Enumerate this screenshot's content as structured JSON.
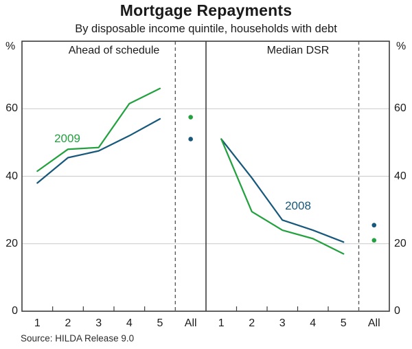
{
  "header": {
    "title": "Mortgage Repayments",
    "subtitle": "By disposable income quintile, households with debt"
  },
  "axes": {
    "unit_label": "%",
    "y_ticks": [
      0,
      20,
      40,
      60
    ],
    "y_max": 80,
    "x_categories": [
      "1",
      "2",
      "3",
      "4",
      "5",
      "All"
    ]
  },
  "source": "Source: HILDA Release 9.0",
  "colors": {
    "green": "#23a13e",
    "blue": "#17587b",
    "gridline": "#c9c9c9",
    "frame": "#3c3c3c",
    "dashed": "#5a5a5a"
  },
  "chart_data": [
    {
      "type": "line",
      "panel": "left",
      "title": "Ahead of schedule",
      "categories": [
        "1",
        "2",
        "3",
        "4",
        "5"
      ],
      "all_category": "All",
      "ylim": [
        0,
        80
      ],
      "grid": [
        20,
        40,
        60
      ],
      "series": [
        {
          "name": "2009",
          "color": "#23a13e",
          "values": [
            41.5,
            48,
            48.5,
            61.5,
            66
          ],
          "all_value": 57.5
        },
        {
          "name": "2008",
          "color": "#17587b",
          "values": [
            38,
            45.5,
            47.5,
            52,
            57
          ],
          "all_value": 51
        }
      ]
    },
    {
      "type": "line",
      "panel": "right",
      "title": "Median DSR",
      "categories": [
        "1",
        "2",
        "3",
        "4",
        "5"
      ],
      "all_category": "All",
      "ylim": [
        0,
        80
      ],
      "grid": [
        20,
        40,
        60
      ],
      "series": [
        {
          "name": "2008",
          "color": "#17587b",
          "values": [
            51,
            39.5,
            27,
            24,
            20.5
          ],
          "all_value": 25.5
        },
        {
          "name": "2009",
          "color": "#23a13e",
          "values": [
            51,
            29.5,
            24,
            21.5,
            17
          ],
          "all_value": 21
        }
      ]
    }
  ]
}
